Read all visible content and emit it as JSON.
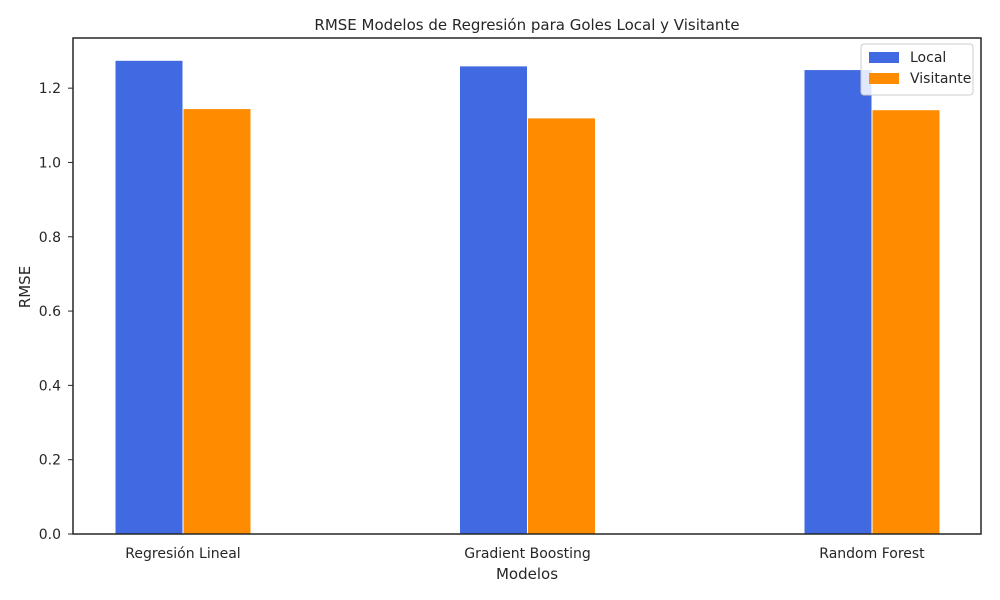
{
  "chart_data": {
    "type": "bar",
    "title": "RMSE Modelos de Regresión para Goles Local y Visitante",
    "xlabel": "Modelos",
    "ylabel": "RMSE",
    "categories": [
      "Regresión Lineal",
      "Gradient Boosting",
      "Random Forest"
    ],
    "series": [
      {
        "name": "Local",
        "color": "#4169e1",
        "values": [
          1.275,
          1.26,
          1.25
        ]
      },
      {
        "name": "Visitante",
        "color": "#ff8c00",
        "values": [
          1.145,
          1.12,
          1.142
        ]
      }
    ],
    "ylim": [
      0,
      1.335
    ],
    "yticks": [
      "0.0",
      "0.2",
      "0.4",
      "0.6",
      "0.8",
      "1.0",
      "1.2"
    ],
    "grid": false,
    "legend_position": "top-right"
  }
}
